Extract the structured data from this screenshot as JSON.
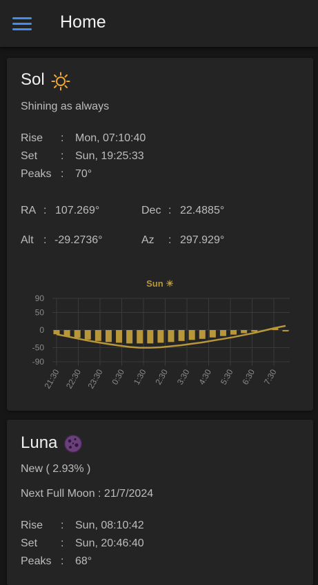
{
  "appbar": {
    "title": "Home",
    "menu_icon": "hamburger-menu-icon"
  },
  "sol": {
    "name": "Sol",
    "icon": "sun-icon",
    "status": "Shining as always",
    "rows": [
      {
        "label": "Rise",
        "sep": ":",
        "value": "Mon, 07:10:40"
      },
      {
        "label": "Set",
        "sep": ":",
        "value": "Sun, 19:25:33"
      },
      {
        "label": "Peaks",
        "sep": ":",
        "value": "70°"
      }
    ],
    "coords": {
      "ra": {
        "label": "RA",
        "sep": ":",
        "value": "107.269°"
      },
      "dec": {
        "label": "Dec",
        "sep": ":",
        "value": "22.4885°"
      },
      "alt": {
        "label": "Alt",
        "sep": ":",
        "value": "-29.2736°"
      },
      "az": {
        "label": "Az",
        "sep": ":",
        "value": "297.929°"
      }
    }
  },
  "luna": {
    "name": "Luna",
    "icon": "moon-icon",
    "phase": "New ( 2.93% )",
    "next_full": "Next Full Moon : 21/7/2024",
    "rows": [
      {
        "label": "Rise",
        "sep": ":",
        "value": "Sun, 08:10:42"
      },
      {
        "label": "Set",
        "sep": ":",
        "value": "Sun, 20:46:40"
      },
      {
        "label": "Peaks",
        "sep": ":",
        "value": "68°"
      }
    ]
  },
  "colors": {
    "accent": "#3f8ef3",
    "sun_gold": "#b8963a",
    "moon_purple": "#6a3f7c"
  },
  "chart_data": {
    "type": "bar",
    "title": "Sun ☀",
    "ylim": [
      -90,
      90
    ],
    "yticks": [
      90,
      50,
      0,
      -50,
      -90
    ],
    "categories": [
      "21:30",
      "22:30",
      "23:30",
      "0:30",
      "1:30",
      "2:30",
      "3:30",
      "4:30",
      "5:30",
      "6:30",
      "7:30"
    ],
    "bar_values": [
      -12,
      -18,
      -22,
      -27,
      -31,
      -34,
      -36,
      -38,
      -38,
      -38,
      -36,
      -34,
      -31,
      -28,
      -25,
      -21,
      -17,
      -13,
      -9,
      -5,
      0,
      5,
      -4
    ],
    "curve_values": [
      -12,
      -18,
      -24,
      -30,
      -35,
      -40,
      -44,
      -48,
      -50,
      -50,
      -49,
      -46,
      -43,
      -39,
      -35,
      -30,
      -25,
      -20,
      -14,
      -8,
      -1,
      6,
      12
    ],
    "grid": true,
    "legend": "none"
  }
}
